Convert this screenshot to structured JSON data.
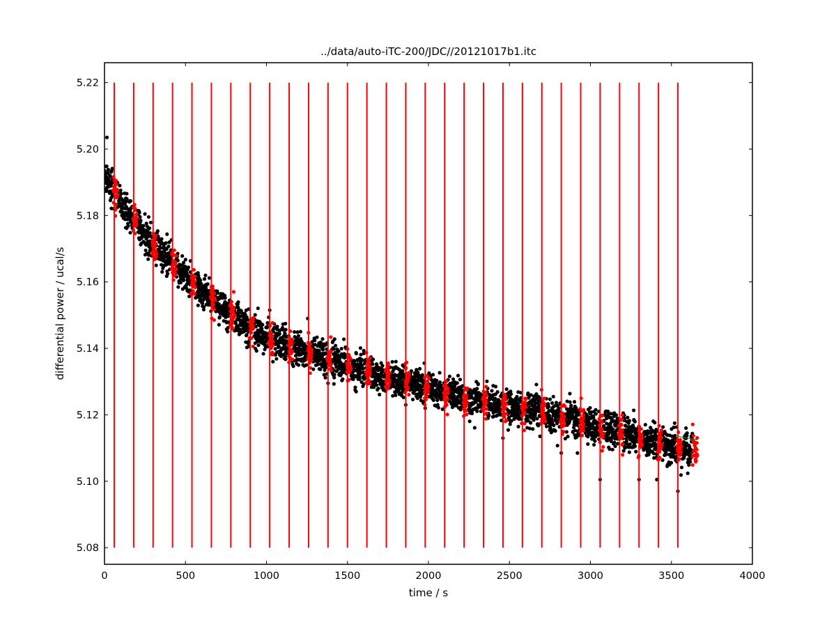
{
  "chart_data": {
    "type": "scatter",
    "title": "../data/auto-iTC-200/JDC//20121017b1.itc",
    "xlabel": "time / s",
    "ylabel": "differential power / ucal/s",
    "xlim": [
      0,
      4000
    ],
    "ylim": [
      5.075,
      5.226
    ],
    "xticks": [
      0,
      500,
      1000,
      1500,
      2000,
      2500,
      3000,
      3500,
      4000
    ],
    "yticks": [
      5.08,
      5.1,
      5.12,
      5.14,
      5.16,
      5.18,
      5.2,
      5.22
    ],
    "grid": false,
    "legend": "none",
    "colors": {
      "raw_points": "#000000",
      "injection_points": "#ff0000",
      "injection_lines": "#ff0000",
      "baseline": "#008000"
    },
    "injection_times": [
      60,
      180,
      300,
      420,
      540,
      660,
      780,
      900,
      1020,
      1140,
      1260,
      1380,
      1500,
      1620,
      1740,
      1860,
      1980,
      2100,
      2220,
      2340,
      2460,
      2580,
      2700,
      2820,
      2940,
      3060,
      3180,
      3300,
      3420,
      3540
    ],
    "injection_line_range": [
      5.08,
      5.22
    ],
    "trend": {
      "x": [
        0,
        60,
        180,
        300,
        420,
        540,
        660,
        780,
        900,
        1020,
        1140,
        1260,
        1380,
        1500,
        1620,
        1740,
        1860,
        1980,
        2100,
        2220,
        2340,
        2460,
        2580,
        2700,
        2820,
        2940,
        3060,
        3180,
        3300,
        3420,
        3540,
        3660
      ],
      "y": [
        5.192,
        5.187,
        5.179,
        5.171,
        5.166,
        5.16,
        5.155,
        5.15,
        5.146,
        5.143,
        5.141,
        5.139,
        5.137,
        5.135,
        5.133,
        5.131,
        5.13,
        5.128,
        5.127,
        5.125,
        5.124,
        5.123,
        5.122,
        5.121,
        5.119,
        5.118,
        5.116,
        5.115,
        5.113,
        5.112,
        5.11,
        5.109
      ]
    },
    "noise_sd": 0.0025,
    "point_spacing_s": 1,
    "injection_window_s": 20,
    "baseline": {
      "x": [
        3540,
        3660
      ],
      "y": [
        5.1135,
        5.1125
      ]
    },
    "outliers": [
      {
        "x": 15,
        "y": 5.2035
      },
      {
        "x": 1020,
        "y": 5.1515
      },
      {
        "x": 1040,
        "y": 5.136
      },
      {
        "x": 1255,
        "y": 5.149
      },
      {
        "x": 1380,
        "y": 5.1295
      },
      {
        "x": 1860,
        "y": 5.123
      },
      {
        "x": 1980,
        "y": 5.122
      },
      {
        "x": 2460,
        "y": 5.113
      },
      {
        "x": 2590,
        "y": 5.123
      },
      {
        "x": 2820,
        "y": 5.1085
      },
      {
        "x": 2920,
        "y": 5.1085
      },
      {
        "x": 3060,
        "y": 5.1005
      },
      {
        "x": 3300,
        "y": 5.1005
      },
      {
        "x": 3410,
        "y": 5.1005
      },
      {
        "x": 3540,
        "y": 5.097
      },
      {
        "x": 3520,
        "y": 5.1175
      },
      {
        "x": 3590,
        "y": 5.116
      }
    ]
  }
}
